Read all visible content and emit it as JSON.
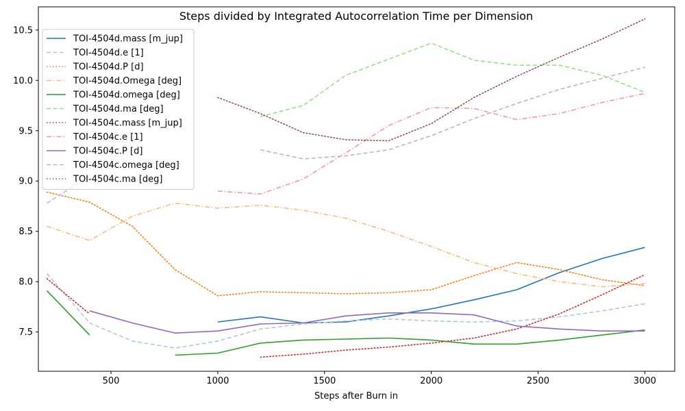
{
  "chart_data": {
    "type": "line",
    "title": "Steps divided by Integrated Autocorrelation Time per Dimension",
    "xlabel": "Steps after Burn in",
    "ylabel": "",
    "xlim": [
      160,
      3140
    ],
    "ylim": [
      7.11,
      10.73
    ],
    "xticks": [
      500,
      1000,
      1500,
      2000,
      2500,
      3000
    ],
    "yticks": [
      7.5,
      8.0,
      8.5,
      9.0,
      9.5,
      10.0,
      10.5
    ],
    "xtick_labels": [
      "500",
      "1000",
      "1500",
      "2000",
      "2500",
      "3000"
    ],
    "ytick_labels": [
      "7.5",
      "8.0",
      "8.5",
      "9.0",
      "9.5",
      "10.0",
      "10.5"
    ],
    "grid": false,
    "legend_position": "top-left",
    "series": [
      {
        "name": "TOI-4504d.mass [m_jup]",
        "color": "#1f77b4",
        "dash": "solid",
        "x": [
          1000,
          1200,
          1400,
          1600,
          1800,
          2000,
          2200,
          2400,
          2600,
          2800,
          3000
        ],
        "y": [
          7.6,
          7.65,
          7.59,
          7.6,
          7.66,
          7.73,
          7.82,
          7.92,
          8.09,
          8.23,
          8.34
        ]
      },
      {
        "name": "TOI-4504d.e [1]",
        "color": "#aec7e8",
        "dash": "dashed",
        "x": [
          200,
          400,
          600,
          800,
          1000,
          1200,
          1400,
          1600,
          1800,
          2000,
          2200,
          2400,
          2600,
          2800,
          3000
        ],
        "y": [
          8.08,
          7.59,
          7.41,
          7.34,
          7.41,
          7.53,
          7.58,
          7.61,
          7.63,
          7.61,
          7.6,
          7.61,
          7.65,
          7.71,
          7.78
        ]
      },
      {
        "name": "TOI-4504d.P [d]",
        "color": "#ff7f0e",
        "dash": "dotted",
        "x": [
          200,
          400,
          600,
          800,
          1000,
          1200,
          1400,
          1600,
          1800,
          2000,
          2200,
          2400,
          2600,
          2800,
          3000
        ],
        "y": [
          8.89,
          8.79,
          8.55,
          8.12,
          7.86,
          7.9,
          7.89,
          7.88,
          7.89,
          7.92,
          8.06,
          8.19,
          8.12,
          8.02,
          7.96
        ]
      },
      {
        "name": "TOI-4504d.Omega [deg]",
        "color": "#ffbb78",
        "dash": "dashdot",
        "x": [
          200,
          400,
          600,
          800,
          1000,
          1200,
          1400,
          1600,
          1800,
          2000,
          2200,
          2400,
          2600,
          2800,
          3000
        ],
        "y": [
          8.55,
          8.41,
          8.65,
          8.78,
          8.73,
          8.76,
          8.71,
          8.63,
          8.5,
          8.35,
          8.19,
          8.08,
          8.0,
          7.95,
          7.98
        ]
      },
      {
        "name": "TOI-4504d.omega [deg]",
        "color": "#2ca02c",
        "dash": "solid",
        "x": [
          200,
          400,
          null,
          800,
          1000,
          1200,
          1400,
          1600,
          1800,
          2000,
          2200,
          2400,
          2600,
          2800,
          3000
        ],
        "y": [
          7.91,
          7.47,
          null,
          7.27,
          7.29,
          7.39,
          7.42,
          7.43,
          7.44,
          7.42,
          7.38,
          7.38,
          7.42,
          7.47,
          7.52
        ]
      },
      {
        "name": "TOI-4504d.ma [deg]",
        "color": "#98df8a",
        "dash": "dashed",
        "x": [
          1200,
          1400,
          1600,
          1800,
          2000,
          2200,
          2400,
          2600,
          2800,
          3000
        ],
        "y": [
          9.64,
          9.75,
          10.05,
          10.21,
          10.37,
          10.2,
          10.15,
          10.15,
          10.05,
          9.88
        ]
      },
      {
        "name": "TOI-4504c.mass [m_jup]",
        "color": "#d62728",
        "dash": "dotted",
        "x": [
          200,
          400,
          null,
          1200,
          1400,
          1600,
          1800,
          2000,
          2200,
          2400,
          2600,
          2800,
          3000
        ],
        "y": [
          8.03,
          7.68,
          null,
          7.25,
          7.28,
          7.32,
          7.35,
          7.39,
          7.44,
          7.53,
          7.68,
          7.87,
          8.07
        ]
      },
      {
        "name": "TOI-4504c.e [1]",
        "color": "#ff9896",
        "dash": "dashdot",
        "x": [
          1000,
          1200,
          1400,
          1600,
          1800,
          2000,
          2200,
          2400,
          2600,
          2800,
          3000
        ],
        "y": [
          8.9,
          8.87,
          9.02,
          9.28,
          9.55,
          9.73,
          9.72,
          9.61,
          9.67,
          9.78,
          9.87
        ]
      },
      {
        "name": "TOI-4504c.P [d]",
        "color": "#9467bd",
        "dash": "solid",
        "x": [
          400,
          600,
          800,
          1000,
          1200,
          1400,
          1600,
          1800,
          2000,
          2200,
          2400,
          2600,
          2800,
          3000
        ],
        "y": [
          7.71,
          7.59,
          7.49,
          7.51,
          7.58,
          7.59,
          7.66,
          7.69,
          7.69,
          7.67,
          7.56,
          7.53,
          7.51,
          7.51
        ]
      },
      {
        "name": "TOI-4504c.omega [deg]",
        "color": "#c5b0d5",
        "dash": "dashed",
        "x": [
          200,
          400,
          null,
          1200,
          1400,
          1600,
          1800,
          2000,
          2200,
          2400,
          2600,
          2800,
          3000
        ],
        "y": [
          8.78,
          9.05,
          null,
          9.31,
          9.22,
          9.25,
          9.31,
          9.45,
          9.62,
          9.77,
          9.91,
          10.02,
          10.13
        ]
      },
      {
        "name": "TOI-4504c.ma [deg]",
        "color": "#8c564b",
        "dash": "dotted",
        "x": [
          1000,
          1200,
          1400,
          1600,
          1800,
          2000,
          2200,
          2400,
          2600,
          2800,
          3000
        ],
        "y": [
          9.83,
          9.67,
          9.48,
          9.41,
          9.4,
          9.57,
          9.83,
          10.04,
          10.23,
          10.41,
          10.61
        ]
      }
    ]
  }
}
